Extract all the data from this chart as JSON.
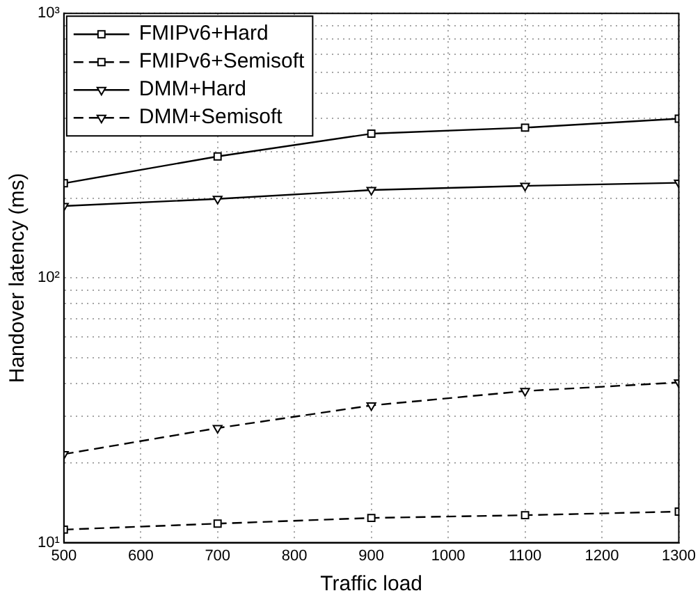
{
  "chart_data": {
    "type": "line",
    "xlabel": "Traffic load",
    "ylabel": "Handover latency (ms)",
    "x": [
      500,
      700,
      900,
      1100,
      1300
    ],
    "series": [
      {
        "name": "FMIPv6+Hard",
        "color": "#000000",
        "marker": "square",
        "line_style": "solid",
        "values": [
          228,
          288,
          351,
          370,
          400
        ]
      },
      {
        "name": "FMIPv6+Semisoft",
        "color": "#000000",
        "marker": "square",
        "line_style": "dashed",
        "values": [
          11.2,
          11.8,
          12.4,
          12.7,
          13.1
        ]
      },
      {
        "name": "DMM+Hard",
        "color": "#000000",
        "marker": "triangle",
        "line_style": "solid",
        "values": [
          187,
          199,
          215,
          223,
          229
        ]
      },
      {
        "name": "DMM+Semisoft",
        "color": "#000000",
        "marker": "triangle",
        "line_style": "dashed",
        "values": [
          21.6,
          27.1,
          33,
          37.4,
          40.3
        ]
      }
    ],
    "log": "y",
    "xlim": [
      500,
      1300
    ],
    "xticks": [
      500,
      600,
      700,
      800,
      900,
      1000,
      1100,
      1200,
      1300
    ],
    "ylim": [
      10,
      1000
    ],
    "yticks": [
      {
        "value": 10,
        "label": "10¹"
      },
      {
        "value": 20,
        "label": null
      },
      {
        "value": 30,
        "label": null
      },
      {
        "value": 40,
        "label": null
      },
      {
        "value": 50,
        "label": null
      },
      {
        "value": 60,
        "label": null
      },
      {
        "value": 70,
        "label": null
      },
      {
        "value": 80,
        "label": null
      },
      {
        "value": 90,
        "label": null
      },
      {
        "value": 100,
        "label": "10²"
      },
      {
        "value": 200,
        "label": null
      },
      {
        "value": 300,
        "label": null
      },
      {
        "value": 400,
        "label": null
      },
      {
        "value": 500,
        "label": null
      },
      {
        "value": 600,
        "label": null
      },
      {
        "value": 700,
        "label": null
      },
      {
        "value": 800,
        "label": null
      },
      {
        "value": 900,
        "label": null
      },
      {
        "value": 1000,
        "label": "10³"
      }
    ],
    "grid": true,
    "legend": "top left"
  }
}
